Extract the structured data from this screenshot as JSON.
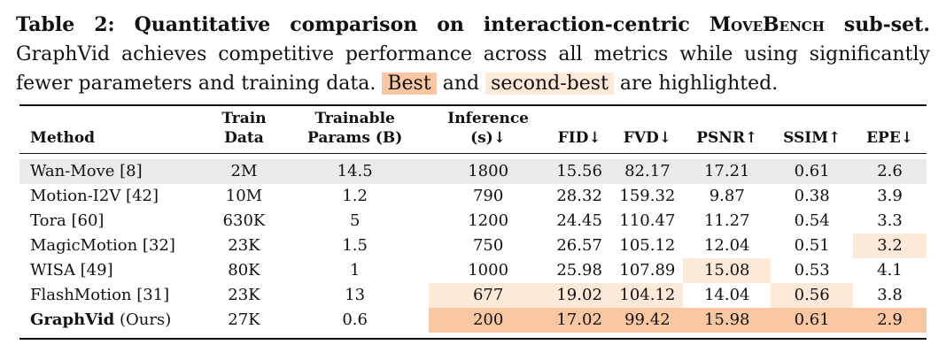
{
  "caption": {
    "label": "Table 2: Quantitative comparison on interaction-centric",
    "benchmark": "MoveBench",
    "label_end": "sub-set.",
    "text_part1": "GraphVid achieves competitive performance across all metrics while using significantly fewer parameters and training data.",
    "best_label": "Best",
    "and_text": "and",
    "second_label": "second-best",
    "text_part2": "are highlighted."
  },
  "table": {
    "headers": {
      "method": "Method",
      "train_data": [
        "Train",
        "Data"
      ],
      "params": [
        "Trainable",
        "Params (B)"
      ],
      "inference": [
        "Inference",
        "(s)↓"
      ],
      "fid": "FID↓",
      "fvd": "FVD↓",
      "psnr": "PSNR↑",
      "ssim": "SSIM↑",
      "epe": "EPE↓"
    },
    "rows": [
      {
        "method": "Wan-Move [8]",
        "train_data": "2M",
        "params": "14.5",
        "inference": "1800",
        "fid": "15.56",
        "fvd": "82.17",
        "psnr": "17.21",
        "ssim": "0.61",
        "epe": "2.6"
      },
      {
        "method": "Motion-I2V [42]",
        "train_data": "10M",
        "params": "1.2",
        "inference": "790",
        "fid": "28.32",
        "fvd": "159.32",
        "psnr": "9.87",
        "ssim": "0.38",
        "epe": "3.9"
      },
      {
        "method": "Tora [60]",
        "train_data": "630K",
        "params": "5",
        "inference": "1200",
        "fid": "24.45",
        "fvd": "110.47",
        "psnr": "11.27",
        "ssim": "0.54",
        "epe": "3.3"
      },
      {
        "method": "MagicMotion [32]",
        "train_data": "23K",
        "params": "1.5",
        "inference": "750",
        "fid": "26.57",
        "fvd": "105.12",
        "psnr": "12.04",
        "ssim": "0.51",
        "epe": "3.2"
      },
      {
        "method": "WISA [49]",
        "train_data": "80K",
        "params": "1",
        "inference": "1000",
        "fid": "25.98",
        "fvd": "107.89",
        "psnr": "15.08",
        "ssim": "0.53",
        "epe": "4.1"
      },
      {
        "method": "FlashMotion [31]",
        "train_data": "23K",
        "params": "13",
        "inference": "677",
        "fid": "19.02",
        "fvd": "104.12",
        "psnr": "14.04",
        "ssim": "0.56",
        "epe": "3.8"
      },
      {
        "method_bold": "GraphVid",
        "method_rest": "(Ours)",
        "train_data": "27K",
        "params": "0.6",
        "inference": "200",
        "fid": "17.02",
        "fvd": "99.42",
        "psnr": "15.98",
        "ssim": "0.61",
        "epe": "2.9"
      }
    ],
    "highlight_colors": {
      "best": "#f9c8a2",
      "second": "#fde9d8",
      "reference_row": "#ebebeb"
    }
  }
}
